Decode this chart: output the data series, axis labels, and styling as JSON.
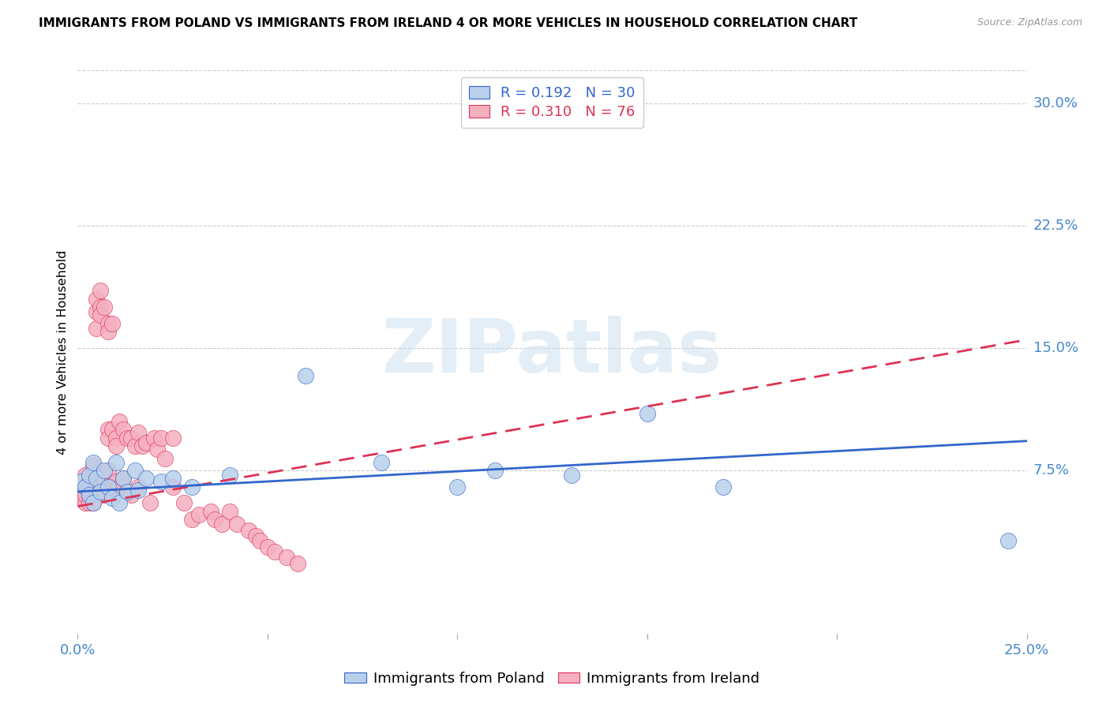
{
  "title": "IMMIGRANTS FROM POLAND VS IMMIGRANTS FROM IRELAND 4 OR MORE VEHICLES IN HOUSEHOLD CORRELATION CHART",
  "source": "Source: ZipAtlas.com",
  "ylabel": "4 or more Vehicles in Household",
  "xlim": [
    0.0,
    0.25
  ],
  "ylim": [
    -0.025,
    0.32
  ],
  "yticks_right": [
    0.075,
    0.15,
    0.225,
    0.3
  ],
  "ytick_labels_right": [
    "7.5%",
    "15.0%",
    "22.5%",
    "30.0%"
  ],
  "poland_R": "0.192",
  "poland_N": "30",
  "ireland_R": "0.310",
  "ireland_N": "76",
  "poland_color": "#b8d0ea",
  "ireland_color": "#f5b0c0",
  "poland_line_color": "#3366cc",
  "ireland_line_color": "#dd3355",
  "legend_label_poland": "Immigrants from Poland",
  "legend_label_ireland": "Immigrants from Ireland",
  "watermark": "ZIPatlas",
  "poland_x": [
    0.001,
    0.002,
    0.003,
    0.003,
    0.004,
    0.004,
    0.005,
    0.006,
    0.007,
    0.008,
    0.009,
    0.01,
    0.011,
    0.012,
    0.013,
    0.015,
    0.016,
    0.018,
    0.022,
    0.025,
    0.03,
    0.04,
    0.06,
    0.08,
    0.1,
    0.11,
    0.13,
    0.15,
    0.17,
    0.245
  ],
  "poland_y": [
    0.068,
    0.065,
    0.072,
    0.06,
    0.08,
    0.055,
    0.07,
    0.062,
    0.075,
    0.065,
    0.058,
    0.08,
    0.055,
    0.07,
    0.062,
    0.075,
    0.063,
    0.07,
    0.068,
    0.07,
    0.065,
    0.072,
    0.133,
    0.08,
    0.065,
    0.075,
    0.072,
    0.11,
    0.065,
    0.032
  ],
  "ireland_x": [
    0.001,
    0.001,
    0.002,
    0.002,
    0.002,
    0.002,
    0.003,
    0.003,
    0.003,
    0.003,
    0.003,
    0.004,
    0.004,
    0.004,
    0.004,
    0.004,
    0.004,
    0.005,
    0.005,
    0.005,
    0.005,
    0.005,
    0.006,
    0.006,
    0.006,
    0.006,
    0.007,
    0.007,
    0.007,
    0.007,
    0.008,
    0.008,
    0.008,
    0.008,
    0.008,
    0.009,
    0.009,
    0.009,
    0.01,
    0.01,
    0.01,
    0.011,
    0.011,
    0.012,
    0.012,
    0.013,
    0.013,
    0.014,
    0.014,
    0.015,
    0.016,
    0.016,
    0.017,
    0.018,
    0.019,
    0.02,
    0.021,
    0.022,
    0.023,
    0.025,
    0.025,
    0.028,
    0.03,
    0.032,
    0.035,
    0.036,
    0.038,
    0.04,
    0.042,
    0.045,
    0.047,
    0.048,
    0.05,
    0.052,
    0.055,
    0.058
  ],
  "ireland_y": [
    0.062,
    0.058,
    0.065,
    0.072,
    0.055,
    0.06,
    0.068,
    0.062,
    0.065,
    0.06,
    0.055,
    0.078,
    0.068,
    0.065,
    0.058,
    0.072,
    0.055,
    0.172,
    0.162,
    0.18,
    0.068,
    0.065,
    0.175,
    0.185,
    0.17,
    0.065,
    0.175,
    0.068,
    0.062,
    0.06,
    0.165,
    0.16,
    0.1,
    0.095,
    0.075,
    0.165,
    0.1,
    0.065,
    0.095,
    0.09,
    0.068,
    0.105,
    0.065,
    0.1,
    0.07,
    0.095,
    0.062,
    0.095,
    0.06,
    0.09,
    0.098,
    0.065,
    0.09,
    0.092,
    0.055,
    0.095,
    0.088,
    0.095,
    0.082,
    0.095,
    0.065,
    0.055,
    0.045,
    0.048,
    0.05,
    0.045,
    0.042,
    0.05,
    0.042,
    0.038,
    0.035,
    0.032,
    0.028,
    0.025,
    0.022,
    0.018
  ],
  "ireland_trend_x": [
    0.0,
    0.25
  ],
  "ireland_trend_y": [
    0.053,
    0.155
  ],
  "poland_trend_x": [
    0.0,
    0.25
  ],
  "poland_trend_y": [
    0.062,
    0.093
  ]
}
